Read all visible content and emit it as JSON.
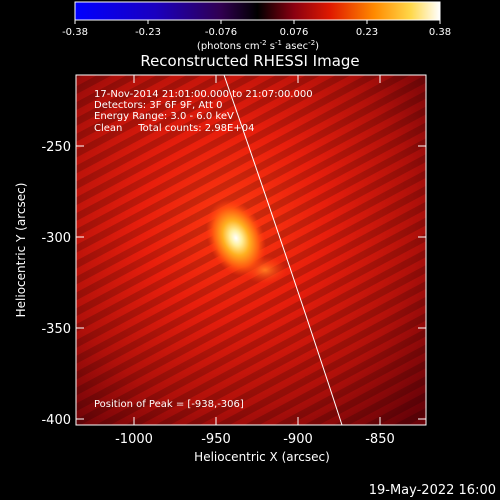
{
  "colorbar": {
    "ticks": [
      "-0.38",
      "-0.23",
      "-0.076",
      "0.076",
      "0.23",
      "0.38"
    ],
    "units_main": "(photons cm",
    "units_exp1": "-2",
    "units_mid1": " s",
    "units_exp2": "-1",
    "units_mid2": " asec",
    "units_exp3": "-2",
    "units_end": ")"
  },
  "title": "Reconstructed RHESSI Image",
  "info": {
    "line1": "17-Nov-2014 21:01:00.000 to 21:07:00.000",
    "line2": "Detectors: 3F 6F 9F, Att 0",
    "line3": "Energy Range: 3.0 - 6.0 keV",
    "line4": "Clean     Total counts: 2.98E+04",
    "peak": "Position of Peak = [-938,-306]"
  },
  "axes": {
    "xlabel": "Heliocentric X (arcsec)",
    "ylabel": "Heliocentric Y (arcsec)",
    "xticks": [
      "-1000",
      "-950",
      "-900",
      "-850"
    ],
    "yticks": [
      "-250",
      "-300",
      "-350",
      "-400"
    ]
  },
  "footer": {
    "date": "19-May-2022 16:00"
  }
}
